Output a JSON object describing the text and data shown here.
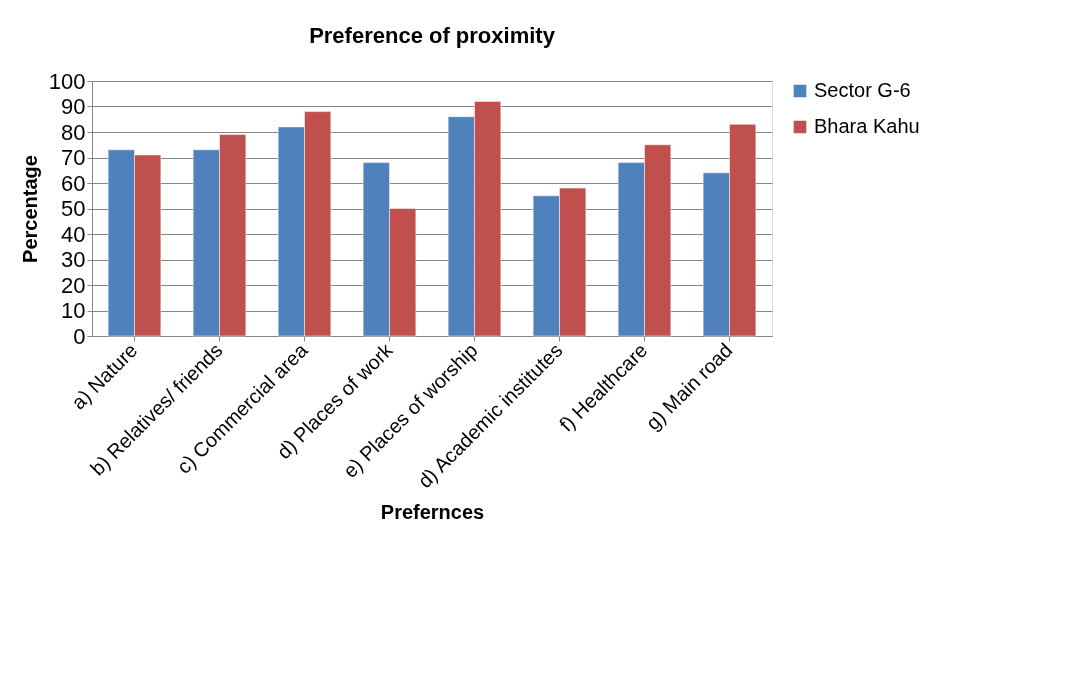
{
  "chart_data": {
    "type": "bar",
    "title": "Preference of proximity",
    "xlabel": "Prefernces",
    "ylabel": "Percentage",
    "categories": [
      "a) Nature",
      "b) Relatives/ friends",
      "c) Commercial area",
      "d) Places of work",
      "e) Places of worship",
      "d) Academic institutes",
      "f) Healthcare",
      "g) Main road"
    ],
    "series": [
      {
        "name": "Sector G-6",
        "color": "#4f81bd",
        "values": [
          73,
          73,
          82,
          68,
          86,
          55,
          68,
          64
        ]
      },
      {
        "name": "Bhara Kahu",
        "color": "#c0504d",
        "values": [
          71,
          79,
          88,
          50,
          92,
          58,
          75,
          83
        ]
      }
    ],
    "ylim": [
      0,
      100
    ],
    "yticks": [
      0,
      10,
      20,
      30,
      40,
      50,
      60,
      70,
      80,
      90,
      100
    ],
    "grid": "y",
    "legend": "right"
  }
}
